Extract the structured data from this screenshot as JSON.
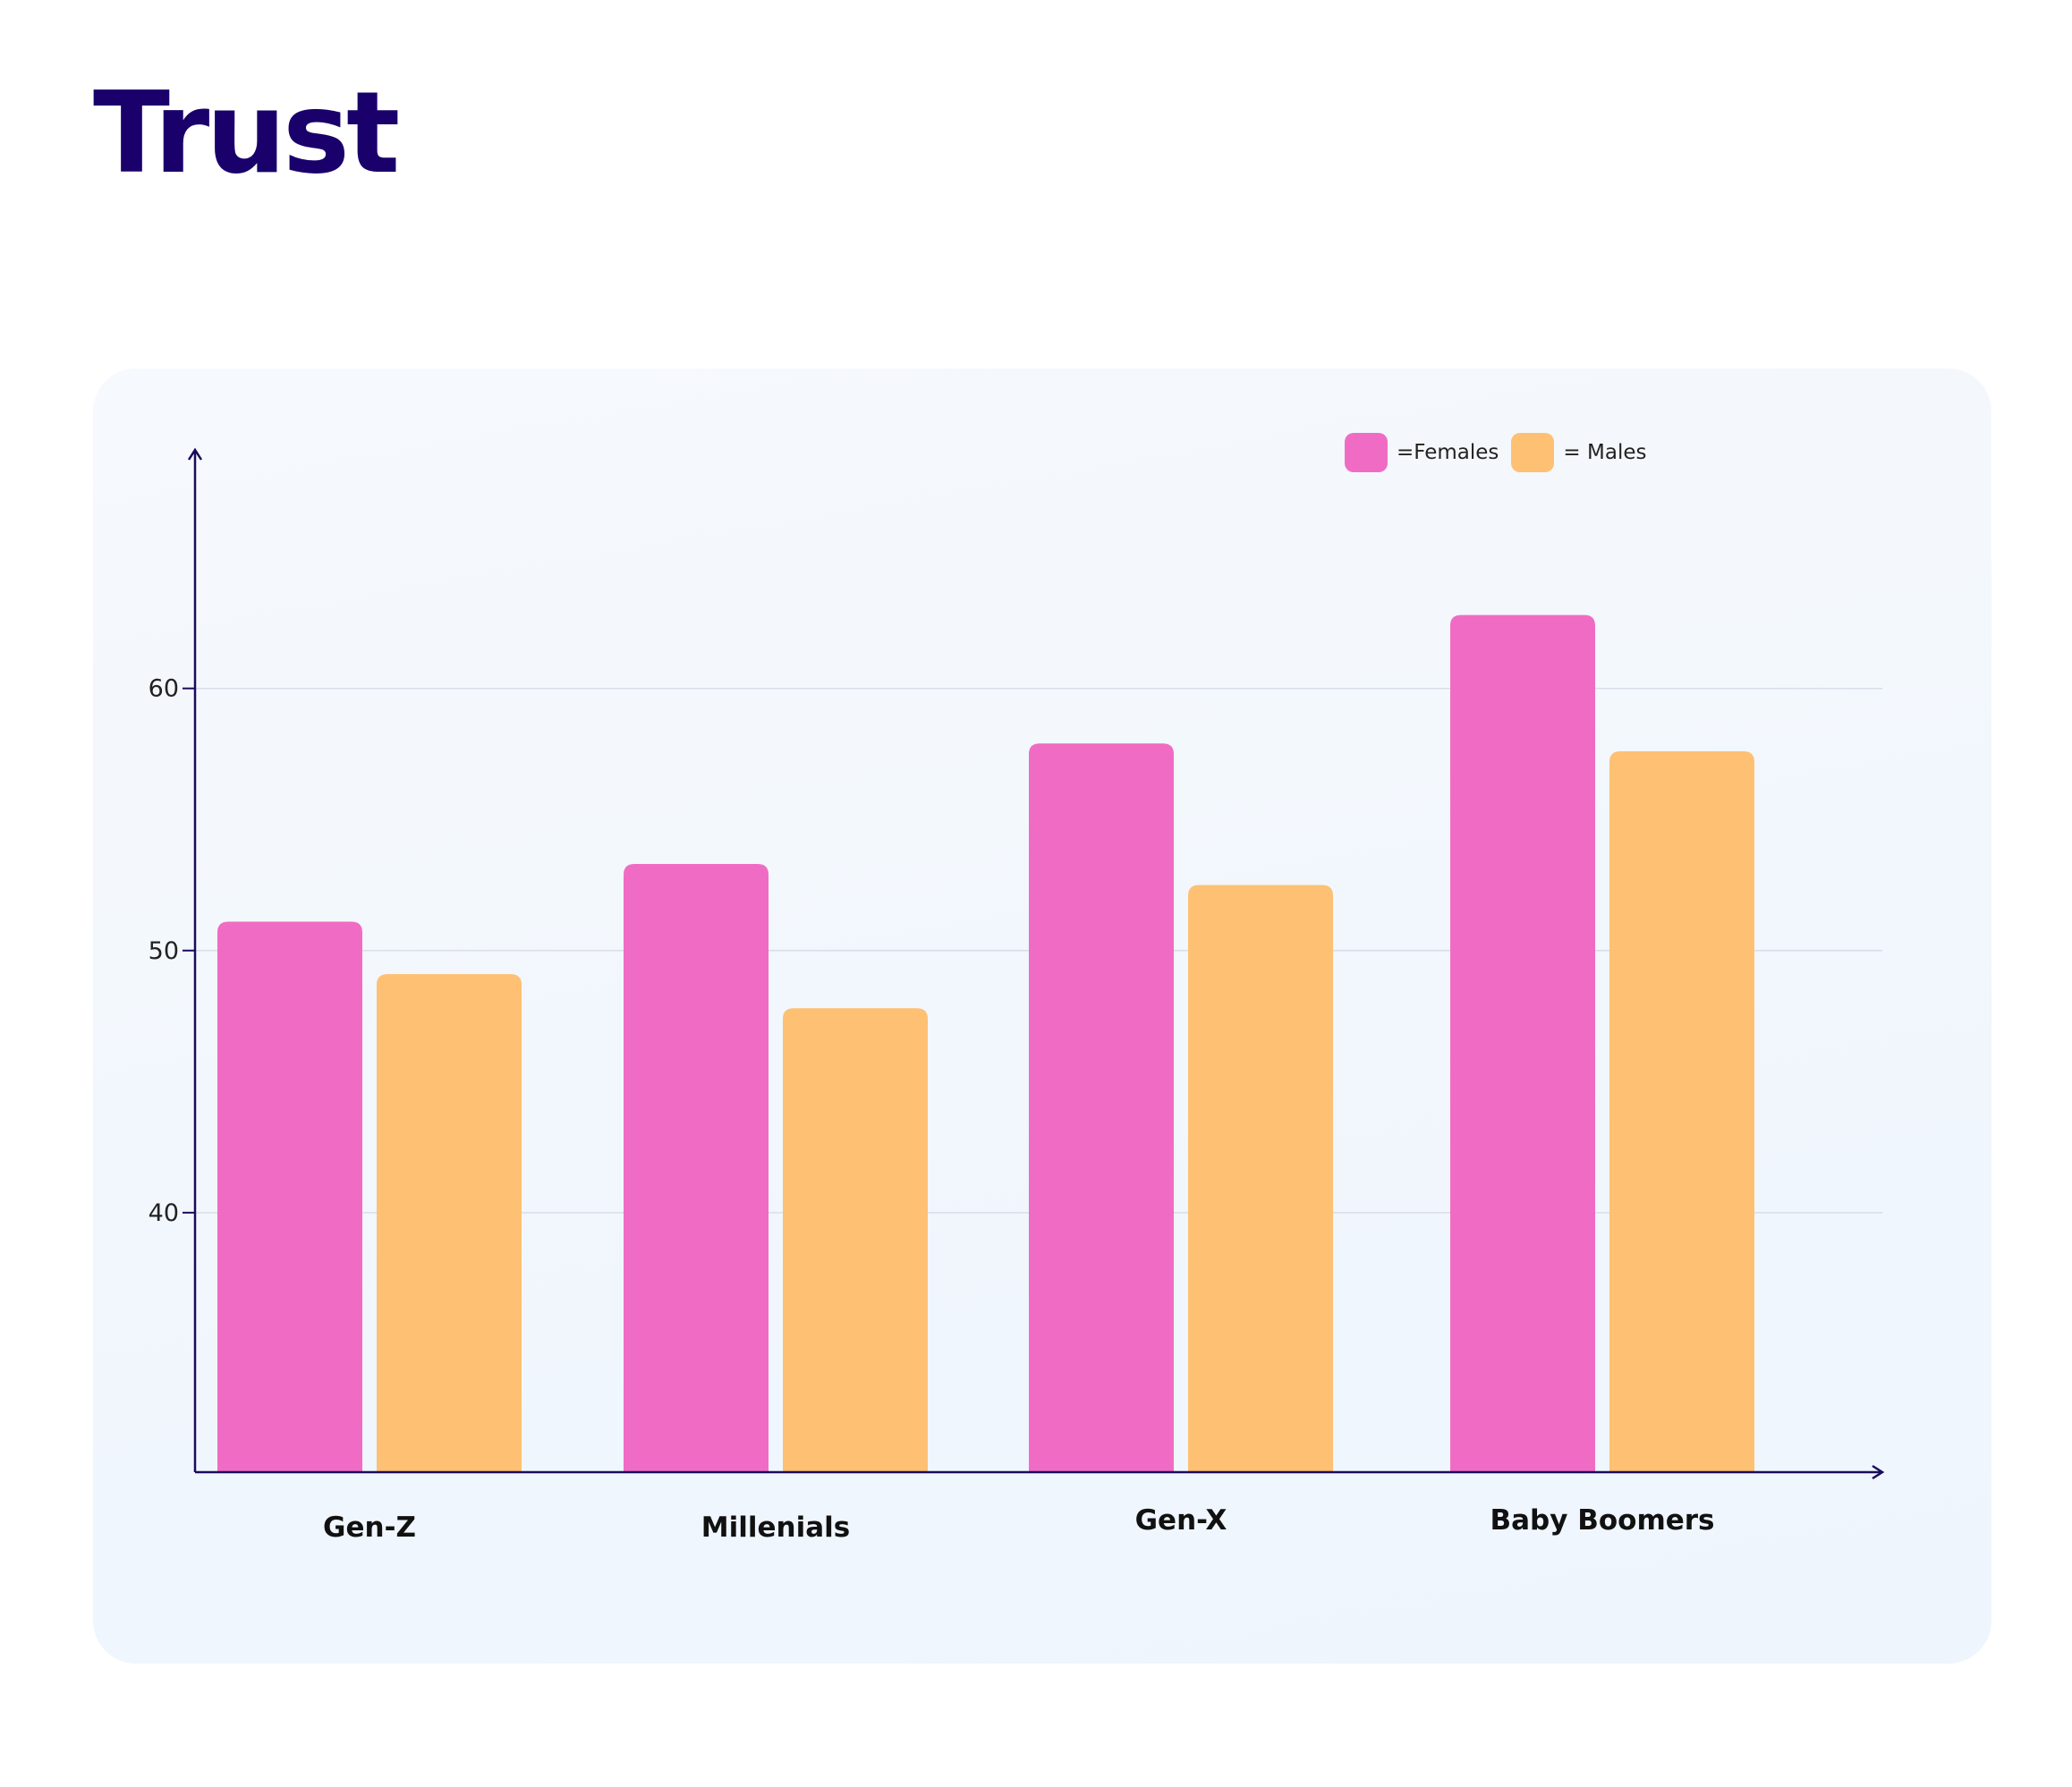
{
  "title": "Trust",
  "colors": {
    "females": "#f06cc4",
    "males": "#fec073",
    "axis": "#1a0b5c",
    "grid": "#d8dee8",
    "title": "#1a006b"
  },
  "chart_data": {
    "type": "bar",
    "title": "",
    "xlabel": "",
    "ylabel": "",
    "categories": [
      "Gen-Z",
      "Millenials",
      "Gen-X",
      "Baby Boomers"
    ],
    "series": [
      {
        "name": "=Females",
        "values": [
          51.1,
          53.3,
          57.9,
          62.8
        ]
      },
      {
        "name": "= Males",
        "values": [
          49.1,
          47.8,
          52.5,
          57.6
        ]
      }
    ],
    "yticks": [
      40,
      50,
      60
    ],
    "ylim": [
      30.1,
      69.1
    ],
    "grid": true,
    "legend_position": "top-right"
  }
}
